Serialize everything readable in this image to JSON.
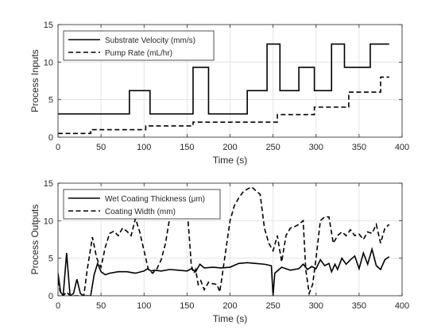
{
  "chart_data": [
    {
      "type": "line",
      "xlabel": "Time (s)",
      "ylabel": "Process Inputs",
      "xlim": [
        0,
        400
      ],
      "ylim": [
        0,
        15
      ],
      "xticks": [
        0,
        50,
        100,
        150,
        200,
        250,
        300,
        350,
        400
      ],
      "yticks": [
        0,
        5,
        10,
        15
      ],
      "grid": true,
      "legend_position": "top-left",
      "series": [
        {
          "name": "Substrate Velocity (mm/s)",
          "style": "solid",
          "x": [
            0,
            83,
            83,
            107,
            107,
            157,
            157,
            175,
            175,
            220,
            220,
            243,
            243,
            258,
            258,
            280,
            280,
            298,
            298,
            318,
            318,
            333,
            333,
            363,
            363,
            385
          ],
          "y": [
            3.1,
            3.1,
            6.2,
            6.2,
            3.1,
            3.1,
            9.3,
            9.3,
            3.1,
            3.1,
            6.2,
            6.2,
            12.4,
            12.4,
            6.2,
            6.2,
            9.3,
            9.3,
            6.2,
            6.2,
            12.4,
            12.4,
            9.3,
            9.3,
            12.4,
            12.4
          ]
        },
        {
          "name": "Pump Rate (mL/hr)",
          "style": "dashed",
          "x": [
            0,
            38,
            38,
            102,
            102,
            157,
            157,
            255,
            255,
            298,
            298,
            338,
            338,
            375,
            375,
            385
          ],
          "y": [
            0.5,
            0.5,
            1.0,
            1.0,
            1.5,
            1.5,
            2.0,
            2.0,
            3.0,
            3.0,
            4.0,
            4.0,
            6.0,
            6.0,
            8.0,
            8.0
          ]
        }
      ]
    },
    {
      "type": "line",
      "xlabel": "Time (s)",
      "ylabel": "Process Outputs",
      "xlim": [
        0,
        400
      ],
      "ylim": [
        0,
        15
      ],
      "xticks": [
        0,
        50,
        100,
        150,
        200,
        250,
        300,
        350,
        400
      ],
      "yticks": [
        0,
        5,
        10,
        15
      ],
      "grid": true,
      "legend_position": "top-left",
      "series": [
        {
          "name": "Wet Coating Thickness (μm)",
          "style": "solid",
          "x": [
            0,
            3,
            6,
            10,
            14,
            18,
            22,
            26,
            30,
            34,
            38,
            42,
            46,
            50,
            55,
            60,
            70,
            80,
            90,
            100,
            104,
            108,
            112,
            120,
            130,
            140,
            150,
            155,
            160,
            165,
            170,
            180,
            190,
            200,
            210,
            220,
            230,
            240,
            248,
            250,
            252,
            255,
            260,
            270,
            280,
            285,
            290,
            295,
            300,
            305,
            310,
            315,
            318,
            322,
            325,
            330,
            335,
            340,
            345,
            350,
            355,
            360,
            365,
            370,
            375,
            380,
            385
          ],
          "y": [
            3,
            0.5,
            0,
            5.7,
            0,
            0.3,
            2.2,
            0.3,
            0,
            0,
            0,
            2.8,
            4.3,
            3.2,
            2.8,
            3.0,
            3.2,
            3.2,
            3.0,
            3.3,
            3.6,
            3.3,
            3.4,
            3.3,
            3.5,
            3.4,
            3.3,
            3.6,
            3.2,
            4.2,
            3.7,
            3.8,
            3.7,
            3.8,
            4.3,
            4.4,
            4.3,
            4.2,
            4.0,
            0,
            3.0,
            3.3,
            3.8,
            3.4,
            3.6,
            4.2,
            3.5,
            3.9,
            3.6,
            4.8,
            4.0,
            4.3,
            3.2,
            4.2,
            3.5,
            5.0,
            4.2,
            4.8,
            5.3,
            3.6,
            5.7,
            4.2,
            6.2,
            4.0,
            3.5,
            4.8,
            5.2
          ]
        },
        {
          "name": "Coating Width (mm)",
          "style": "dashed",
          "x": [
            0,
            3,
            6,
            10,
            14,
            18,
            22,
            26,
            30,
            34,
            40,
            45,
            50,
            55,
            60,
            65,
            70,
            75,
            80,
            85,
            90,
            95,
            100,
            105,
            110,
            115,
            120,
            125,
            130,
            135,
            140,
            145,
            150,
            155,
            158,
            160,
            163,
            166,
            170,
            175,
            180,
            185,
            188,
            190,
            195,
            200,
            205,
            210,
            215,
            220,
            225,
            230,
            235,
            240,
            245,
            250,
            255,
            260,
            265,
            270,
            275,
            280,
            285,
            288,
            292,
            296,
            300,
            305,
            310,
            315,
            320,
            325,
            330,
            335,
            340,
            345,
            350,
            355,
            360,
            365,
            370,
            375,
            380,
            385
          ],
          "y": [
            2,
            0.3,
            0,
            0.5,
            0,
            0,
            0,
            0,
            0,
            3.5,
            7.8,
            5.0,
            3.8,
            6.5,
            8.3,
            8.6,
            8.0,
            9.0,
            8.6,
            8.0,
            10.3,
            8.5,
            6.0,
            3.5,
            3.0,
            3.6,
            4.8,
            7.0,
            10.5,
            12.0,
            11.5,
            12.0,
            12.0,
            4.0,
            3.0,
            3.5,
            1.5,
            2.0,
            0.8,
            1.8,
            1.6,
            1.5,
            0.5,
            2.0,
            6.0,
            10.0,
            12.0,
            13.0,
            13.8,
            14.2,
            14.5,
            14.0,
            13.5,
            9.0,
            7.0,
            6.0,
            8.0,
            4.5,
            8.0,
            9.0,
            9.2,
            9.5,
            10.0,
            3.5,
            0.3,
            1.5,
            5.0,
            10.0,
            10.5,
            10.5,
            7.0,
            8.0,
            8.5,
            8.0,
            8.8,
            8.0,
            8.2,
            7.5,
            8.5,
            8.3,
            9.5,
            7.0,
            9.0,
            9.5
          ]
        }
      ]
    }
  ]
}
